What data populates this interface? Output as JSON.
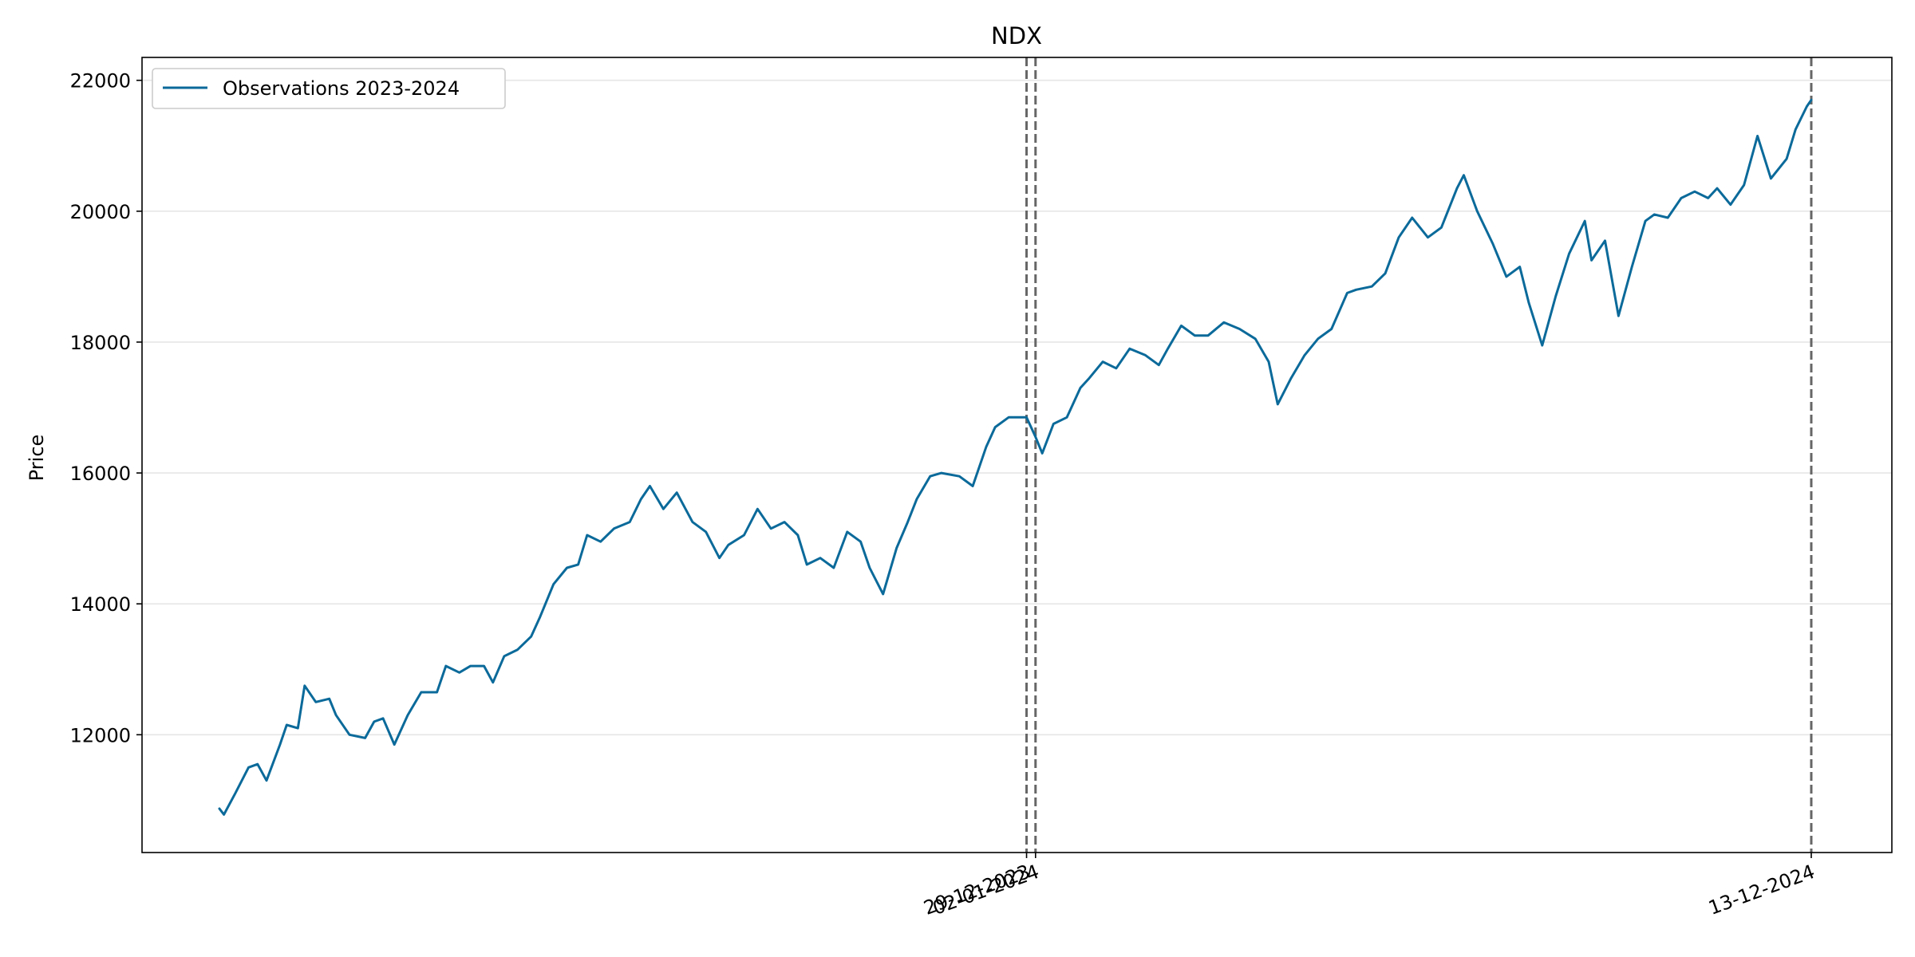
{
  "chart_data": {
    "type": "line",
    "title": "NDX",
    "xlabel": "",
    "ylabel": "Price",
    "ylim": [
      10200,
      22350
    ],
    "y_ticks": [
      12000,
      14000,
      16000,
      18000,
      20000,
      22000
    ],
    "grid": "horizontal",
    "legend": {
      "placement": "top-left",
      "entries": [
        "Observations 2023-2024"
      ]
    },
    "colors": {
      "series": "#0b6a9a",
      "markers": "#666666",
      "grid": "#e6e6e6"
    },
    "x_markers": [
      {
        "date": "2023-12-29",
        "label": "29-12-2023"
      },
      {
        "date": "2024-01-02",
        "label": "02-01-2024"
      },
      {
        "date": "2024-12-13",
        "label": "13-12-2024"
      }
    ],
    "series": [
      {
        "name": "Observations 2023-2024",
        "x": [
          "2023-01-03",
          "2023-01-05",
          "2023-01-10",
          "2023-01-16",
          "2023-01-20",
          "2023-01-24",
          "2023-01-30",
          "2023-02-02",
          "2023-02-07",
          "2023-02-10",
          "2023-02-15",
          "2023-02-21",
          "2023-02-24",
          "2023-03-02",
          "2023-03-09",
          "2023-03-13",
          "2023-03-17",
          "2023-03-22",
          "2023-03-28",
          "2023-04-03",
          "2023-04-10",
          "2023-04-14",
          "2023-04-20",
          "2023-04-25",
          "2023-05-01",
          "2023-05-05",
          "2023-05-10",
          "2023-05-16",
          "2023-05-22",
          "2023-05-26",
          "2023-06-01",
          "2023-06-07",
          "2023-06-12",
          "2023-06-16",
          "2023-06-22",
          "2023-06-28",
          "2023-07-05",
          "2023-07-10",
          "2023-07-14",
          "2023-07-20",
          "2023-07-26",
          "2023-08-02",
          "2023-08-08",
          "2023-08-14",
          "2023-08-18",
          "2023-08-25",
          "2023-08-31",
          "2023-09-06",
          "2023-09-12",
          "2023-09-18",
          "2023-09-22",
          "2023-09-28",
          "2023-10-04",
          "2023-10-10",
          "2023-10-16",
          "2023-10-20",
          "2023-10-26",
          "2023-11-01",
          "2023-11-06",
          "2023-11-10",
          "2023-11-16",
          "2023-11-21",
          "2023-11-29",
          "2023-12-05",
          "2023-12-11",
          "2023-12-15",
          "2023-12-21",
          "2023-12-29",
          "2024-01-02",
          "2024-01-05",
          "2024-01-10",
          "2024-01-16",
          "2024-01-22",
          "2024-01-26",
          "2024-02-01",
          "2024-02-07",
          "2024-02-13",
          "2024-02-20",
          "2024-02-26",
          "2024-03-01",
          "2024-03-07",
          "2024-03-13",
          "2024-03-19",
          "2024-03-26",
          "2024-04-02",
          "2024-04-09",
          "2024-04-15",
          "2024-04-19",
          "2024-04-25",
          "2024-05-01",
          "2024-05-07",
          "2024-05-13",
          "2024-05-20",
          "2024-05-24",
          "2024-05-31",
          "2024-06-06",
          "2024-06-12",
          "2024-06-18",
          "2024-06-25",
          "2024-07-01",
          "2024-07-08",
          "2024-07-11",
          "2024-07-17",
          "2024-07-24",
          "2024-07-30",
          "2024-08-05",
          "2024-08-09",
          "2024-08-15",
          "2024-08-21",
          "2024-08-27",
          "2024-09-03",
          "2024-09-06",
          "2024-09-12",
          "2024-09-18",
          "2024-09-24",
          "2024-09-30",
          "2024-10-04",
          "2024-10-10",
          "2024-10-16",
          "2024-10-22",
          "2024-10-28",
          "2024-11-01",
          "2024-11-07",
          "2024-11-13",
          "2024-11-19",
          "2024-11-25",
          "2024-12-02",
          "2024-12-06",
          "2024-12-11",
          "2024-12-13"
        ],
        "values": [
          10870,
          10780,
          11100,
          11500,
          11550,
          11300,
          11850,
          12150,
          12100,
          12750,
          12500,
          12550,
          12300,
          12000,
          11950,
          12200,
          12250,
          11850,
          12300,
          12650,
          12650,
          13050,
          12950,
          13050,
          13050,
          12800,
          13200,
          13300,
          13500,
          13800,
          14300,
          14550,
          14600,
          15050,
          14950,
          15150,
          15250,
          15600,
          15800,
          15450,
          15700,
          15250,
          15100,
          14700,
          14900,
          15050,
          15450,
          15150,
          15250,
          15050,
          14600,
          14700,
          14550,
          15100,
          14950,
          14550,
          14150,
          14850,
          15250,
          15600,
          15950,
          16000,
          15950,
          15800,
          16400,
          16700,
          16850,
          16850,
          16550,
          16300,
          16750,
          16850,
          17300,
          17450,
          17700,
          17600,
          17900,
          17800,
          17650,
          17900,
          18250,
          18100,
          18100,
          18300,
          18200,
          18050,
          17700,
          17050,
          17450,
          17800,
          18050,
          18200,
          18750,
          18800,
          18850,
          19050,
          19600,
          19900,
          19600,
          19750,
          20350,
          20550,
          20000,
          19500,
          19000,
          19150,
          18600,
          17950,
          18700,
          19350,
          19850,
          19250,
          19550,
          18400,
          19150,
          19850,
          19950,
          19900,
          20200,
          20300,
          20200,
          20350,
          20100,
          20400,
          21150,
          20500,
          20800,
          21250,
          21600,
          21700
        ]
      }
    ]
  }
}
